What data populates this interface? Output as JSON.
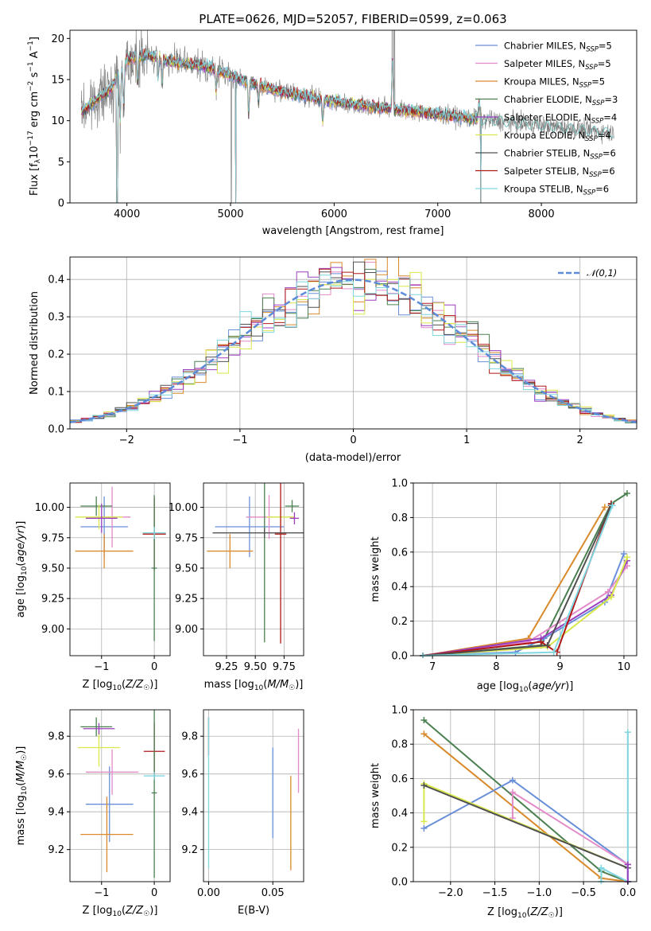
{
  "chart_data": [
    {
      "type": "line",
      "title": "PLATE=0626, MJD=52057, FIBERID=0599, z=0.063",
      "xlabel": "wavelength [Angstrom, rest frame]",
      "ylabel": "Flux [f_λ 10^-17 erg cm^-2 s^-1 A^-1]",
      "xlim": [
        3450,
        8920
      ],
      "ylim": [
        0,
        21
      ],
      "xticks": [
        4000,
        5000,
        6000,
        7000,
        8000
      ],
      "yticks": [
        0,
        5,
        10,
        15,
        20
      ],
      "legend_position": "top-right",
      "data_color": "#808080",
      "series": [
        {
          "name": "Chabrier MILES, N_SSP=5",
          "color": "#6a8fd9"
        },
        {
          "name": "Salpeter MILES, N_SSP=5",
          "color": "#e38ac8"
        },
        {
          "name": "Kroupa MILES, N_SSP=5",
          "color": "#d98a2a"
        },
        {
          "name": "Chabrier ELODIE, N_SSP=3",
          "color": "#4a8050"
        },
        {
          "name": "Salpeter ELODIE, N_SSP=4",
          "color": "#9b3fbf"
        },
        {
          "name": "Kroupa ELODIE, N_SSP=4",
          "color": "#d9e84a"
        },
        {
          "name": "Chabrier STELIB, N_SSP=6",
          "color": "#505050"
        },
        {
          "name": "Salpeter STELIB, N_SSP=6",
          "color": "#b01818"
        },
        {
          "name": "Kroupa STELIB, N_SSP=6",
          "color": "#7ed6e0"
        }
      ],
      "continuum": {
        "x": [
          3560,
          3700,
          3850,
          4000,
          4200,
          4500,
          4800,
          5100,
          5500,
          6000,
          6500,
          7000,
          7400
        ],
        "y": [
          11,
          12.5,
          14,
          17.5,
          18,
          17,
          16.5,
          15,
          13.5,
          12.3,
          11.5,
          10.8,
          10.2
        ]
      },
      "noisy_tail": {
        "x": [
          7400,
          8700
        ],
        "y": [
          10.2,
          8.5
        ]
      }
    },
    {
      "type": "histogram",
      "xlabel": "(data-model)/error",
      "ylabel": "Normed distribution",
      "xlim": [
        -2.5,
        2.5
      ],
      "ylim": [
        0,
        0.46
      ],
      "xticks": [
        -2,
        -1,
        0,
        1,
        2
      ],
      "yticks": [
        0.0,
        0.1,
        0.2,
        0.3,
        0.4
      ],
      "legend": "𝒩(0,1)",
      "legend_position": "top-right",
      "gaussian_color": "#5b8bd9",
      "bin_width": 0.1
    },
    {
      "type": "scatter",
      "xlabel": "Z [log10(Z/Z☉)]",
      "ylabel": "age [log10(age/yr)]",
      "xlim": [
        -1.6,
        0.3
      ],
      "ylim": [
        8.78,
        10.2
      ],
      "xticks": [
        -1,
        0
      ],
      "yticks": [
        9.0,
        9.25,
        9.5,
        9.75,
        10.0
      ],
      "points": [
        {
          "x": -0.95,
          "y": 9.84,
          "ex": 0.45,
          "ey": 0.25,
          "color": "#6a8fd9"
        },
        {
          "x": -0.8,
          "y": 9.92,
          "ex": 0.35,
          "ey": 0.25,
          "color": "#e38ac8"
        },
        {
          "x": -0.95,
          "y": 9.64,
          "ex": 0.55,
          "ey": 0.14,
          "color": "#d98a2a"
        },
        {
          "x": -1.1,
          "y": 10.01,
          "ex": 0.3,
          "ey": 0.08,
          "color": "#4a8050"
        },
        {
          "x": -1.05,
          "y": 9.92,
          "ex": 0.45,
          "ey": 0.1,
          "color": "#d9e84a"
        },
        {
          "x": -1.0,
          "y": 9.91,
          "ex": 0.3,
          "ey": 0.12,
          "color": "#9b3fbf"
        },
        {
          "x": 0.0,
          "y": 9.78,
          "ex": 0.22,
          "ey": 0.3,
          "color": "#b01818"
        },
        {
          "x": 0.0,
          "y": 9.5,
          "ex": 0.05,
          "ey": 0.6,
          "color": "#4a8050"
        },
        {
          "x": 0.0,
          "y": 9.79,
          "ex": 0.22,
          "ey": 0.05,
          "color": "#7ed6e0"
        }
      ]
    },
    {
      "type": "scatter",
      "xlabel": "mass [log10(M/M☉)]",
      "ylabel": "",
      "xlim": [
        9.05,
        9.92
      ],
      "ylim": [
        8.78,
        10.2
      ],
      "xticks": [
        9.25,
        9.5,
        9.75
      ],
      "yticks": [
        9.0,
        9.25,
        9.5,
        9.75,
        10.0
      ],
      "points": [
        {
          "x": 9.45,
          "y": 9.84,
          "ex": 0.3,
          "ey": 0.25,
          "color": "#6a8fd9"
        },
        {
          "x": 9.62,
          "y": 9.92,
          "ex": 0.2,
          "ey": 0.18,
          "color": "#e38ac8"
        },
        {
          "x": 9.28,
          "y": 9.64,
          "ex": 0.2,
          "ey": 0.14,
          "color": "#d98a2a"
        },
        {
          "x": 9.82,
          "y": 10.01,
          "ex": 0.06,
          "ey": 0.05,
          "color": "#4a8050"
        },
        {
          "x": 9.72,
          "y": 9.92,
          "ex": 0.12,
          "ey": 0.08,
          "color": "#d9e84a"
        },
        {
          "x": 9.84,
          "y": 9.91,
          "ex": 0.04,
          "ey": 0.05,
          "color": "#9b3fbf"
        },
        {
          "x": 9.72,
          "y": 9.78,
          "ex": 0.05,
          "ey": 0.9,
          "color": "#b01818"
        },
        {
          "x": 9.58,
          "y": 9.79,
          "ex": 0.45,
          "ey": 0.9,
          "color": "#4a8050"
        },
        {
          "x": 9.58,
          "y": 9.79,
          "ex": 0.45,
          "ey": 0.04,
          "color": "#505050"
        }
      ]
    },
    {
      "type": "line",
      "xlabel": "age [log10(age/yr)]",
      "ylabel": "mass weight",
      "xlim": [
        6.7,
        10.2
      ],
      "ylim": [
        0,
        1
      ],
      "xticks": [
        7,
        8,
        9,
        10
      ],
      "yticks": [
        0.0,
        0.2,
        0.4,
        0.6,
        0.8,
        1.0
      ],
      "series": [
        {
          "color": "#d98a2a",
          "x": [
            6.85,
            8.5,
            9.7
          ],
          "y": [
            0.0,
            0.1,
            0.86
          ]
        },
        {
          "color": "#4a8050",
          "x": [
            6.85,
            8.7,
            9.8,
            10.05
          ],
          "y": [
            0.0,
            0.06,
            0.88,
            0.94
          ]
        },
        {
          "color": "#6a8fd9",
          "x": [
            6.85,
            8.3,
            8.75,
            9.7,
            10.0
          ],
          "y": [
            0.0,
            0.02,
            0.1,
            0.31,
            0.59
          ]
        },
        {
          "color": "#e38ac8",
          "x": [
            6.85,
            8.5,
            9.75,
            10.05
          ],
          "y": [
            0.0,
            0.08,
            0.37,
            0.52
          ]
        },
        {
          "color": "#9b3fbf",
          "x": [
            6.85,
            8.7,
            9.8,
            10.05
          ],
          "y": [
            0.0,
            0.1,
            0.35,
            0.55
          ]
        },
        {
          "color": "#d9e84a",
          "x": [
            6.85,
            8.8,
            9.8,
            10.05
          ],
          "y": [
            0.0,
            0.05,
            0.34,
            0.57
          ]
        },
        {
          "color": "#b01818",
          "x": [
            6.85,
            8.7,
            8.95,
            9.8
          ],
          "y": [
            0.0,
            0.08,
            0.02,
            0.88
          ]
        },
        {
          "color": "#505050",
          "x": [
            6.85,
            8.8,
            9.8
          ],
          "y": [
            0.0,
            0.06,
            0.87
          ]
        },
        {
          "color": "#7ed6e0",
          "x": [
            6.85,
            8.9,
            9.82
          ],
          "y": [
            0.0,
            0.02,
            0.87
          ]
        }
      ]
    },
    {
      "type": "scatter",
      "xlabel": "Z [log10(Z/Z☉)]",
      "ylabel": "mass [log10(M/M☉)]",
      "xlim": [
        -1.6,
        0.3
      ],
      "ylim": [
        9.03,
        9.94
      ],
      "xticks": [
        -1,
        0
      ],
      "yticks": [
        9.2,
        9.4,
        9.6,
        9.8
      ],
      "points": [
        {
          "x": -0.85,
          "y": 9.44,
          "ex": 0.45,
          "ey": 0.2,
          "color": "#6a8fd9"
        },
        {
          "x": -0.8,
          "y": 9.61,
          "ex": 0.5,
          "ey": 0.12,
          "color": "#e38ac8"
        },
        {
          "x": -0.9,
          "y": 9.28,
          "ex": 0.5,
          "ey": 0.2,
          "color": "#d98a2a"
        },
        {
          "x": -1.1,
          "y": 9.85,
          "ex": 0.3,
          "ey": 0.05,
          "color": "#4a8050"
        },
        {
          "x": -1.05,
          "y": 9.74,
          "ex": 0.4,
          "ey": 0.1,
          "color": "#d9e84a"
        },
        {
          "x": -1.05,
          "y": 9.84,
          "ex": 0.3,
          "ey": 0.03,
          "color": "#9b3fbf"
        },
        {
          "x": 0.0,
          "y": 9.72,
          "ex": 0.2,
          "ey": 0.15,
          "color": "#b01818"
        },
        {
          "x": 0.0,
          "y": 9.5,
          "ex": 0.05,
          "ey": 0.45,
          "color": "#4a8050"
        },
        {
          "x": 0.0,
          "y": 9.59,
          "ex": 0.2,
          "ey": 0.02,
          "color": "#7ed6e0"
        }
      ]
    },
    {
      "type": "scatter",
      "xlabel": "E(B-V)",
      "ylabel": "",
      "xlim": [
        -0.004,
        0.074
      ],
      "ylim": [
        9.03,
        9.94
      ],
      "xticks": [
        0.0,
        0.05
      ],
      "yticks": [
        9.2,
        9.4,
        9.6,
        9.8
      ],
      "points": [
        {
          "x": 0.05,
          "y": 9.5,
          "ey": 0.24,
          "color": "#6a8fd9"
        },
        {
          "x": 0.07,
          "y": 9.67,
          "ey": 0.17,
          "color": "#e38ac8"
        },
        {
          "x": 0.064,
          "y": 9.34,
          "ey": 0.25,
          "color": "#d98a2a"
        },
        {
          "x": 0.0,
          "y": 9.8,
          "ey": 0.1,
          "color": "#b01818"
        },
        {
          "x": 0.0,
          "y": 9.5,
          "ey": 0.4,
          "color": "#7ed6e0"
        }
      ]
    },
    {
      "type": "line",
      "xlabel": "Z [log10(Z/Z☉)]",
      "ylabel": "mass weight",
      "xlim": [
        -2.42,
        0.1
      ],
      "ylim": [
        0,
        1
      ],
      "xticks": [
        -2.0,
        -1.5,
        -1.0,
        -0.5,
        0.0
      ],
      "yticks": [
        0.0,
        0.2,
        0.4,
        0.6,
        0.8,
        1.0
      ],
      "series": [
        {
          "color": "#4a8050",
          "x": [
            -2.3,
            -0.3,
            0.0
          ],
          "y": [
            0.94,
            0.06,
            0.0
          ]
        },
        {
          "color": "#d98a2a",
          "x": [
            -2.3,
            -0.3,
            0.0
          ],
          "y": [
            0.86,
            0.02,
            0.0
          ]
        },
        {
          "color": "#6a8fd9",
          "x": [
            -2.3,
            -1.3,
            0.0,
            0.0
          ],
          "y": [
            0.31,
            0.59,
            0.1,
            0.0
          ]
        },
        {
          "color": "#e38ac8",
          "x": [
            -1.3,
            -1.3,
            0.0
          ],
          "y": [
            0.37,
            0.52,
            0.1
          ]
        },
        {
          "color": "#d9e84a",
          "x": [
            -2.3,
            -2.3,
            0.0
          ],
          "y": [
            0.35,
            0.57,
            0.08
          ]
        },
        {
          "color": "#505050",
          "x": [
            -2.3,
            0.0
          ],
          "y": [
            0.56,
            0.08
          ]
        },
        {
          "color": "#7ed6e0",
          "x": [
            -0.3,
            -0.3,
            0.0,
            0.0
          ],
          "y": [
            0.0,
            0.08,
            0.0,
            0.87
          ]
        },
        {
          "color": "#9b3fbf",
          "x": [
            0.0,
            0.0
          ],
          "y": [
            0.1,
            0.0
          ]
        }
      ]
    }
  ]
}
